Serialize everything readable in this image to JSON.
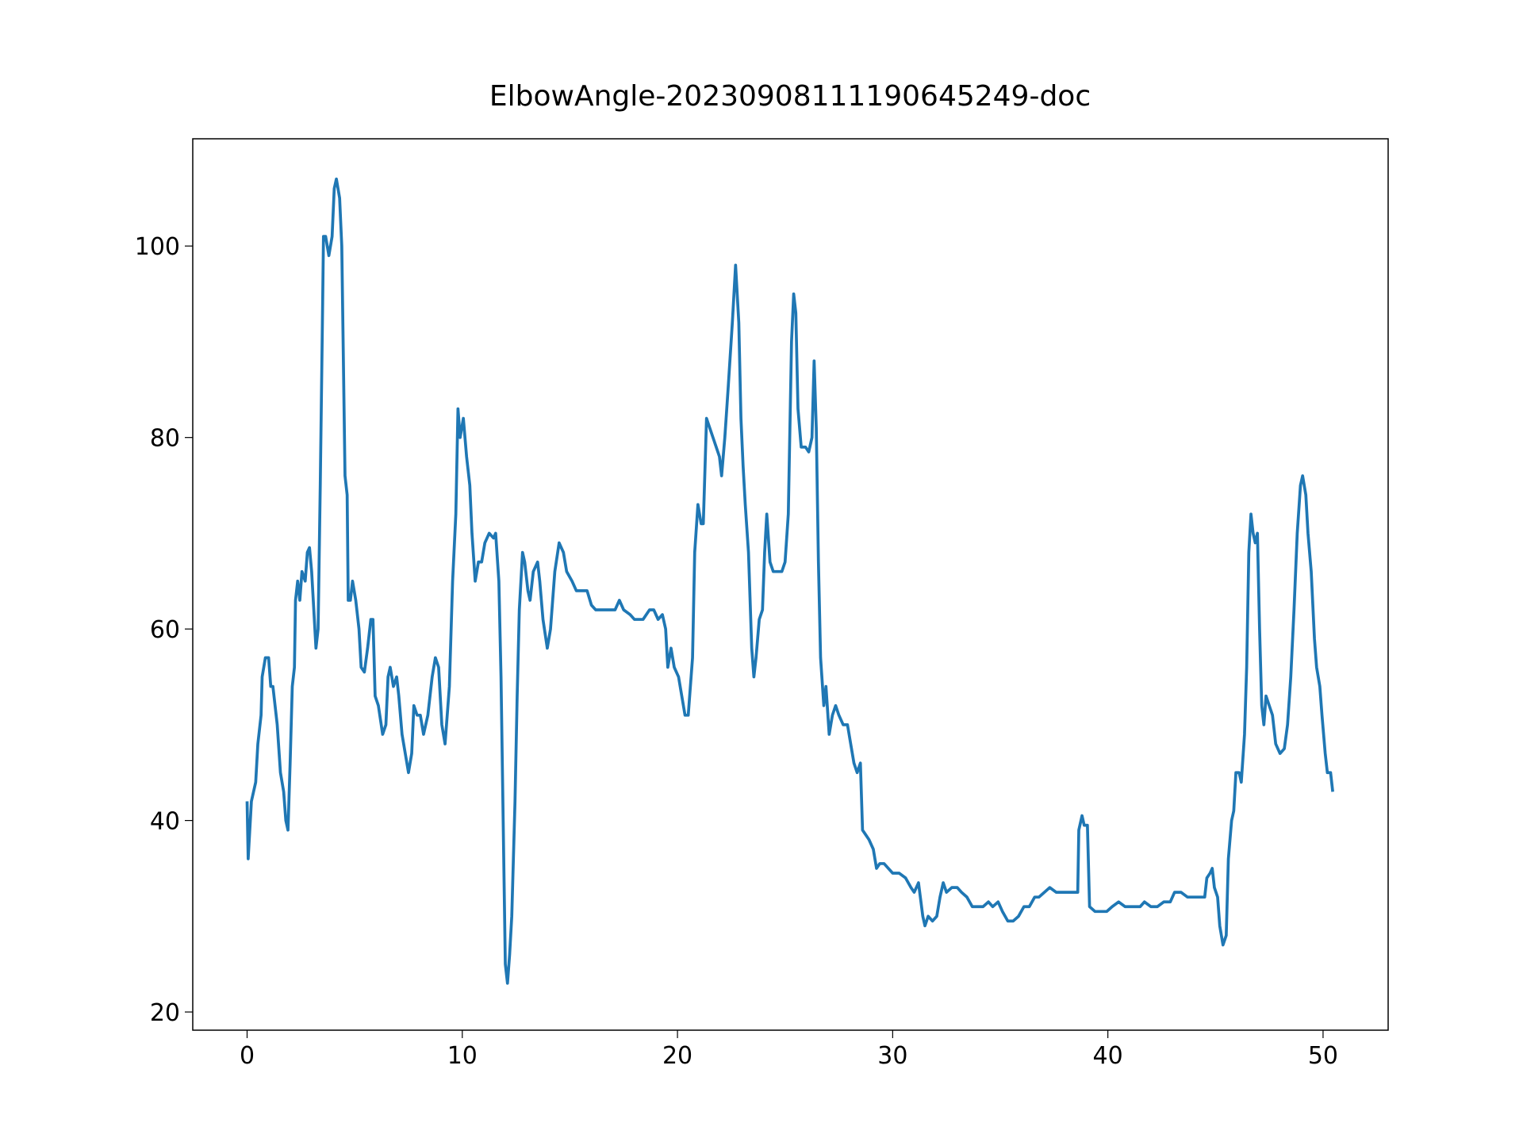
{
  "chart_data": {
    "type": "line",
    "title": "ElbowAngle-20230908111190645249-doc",
    "color": "#1f77b4",
    "xlim": [
      -2.525,
      53.025
    ],
    "ylim": [
      18.1,
      111.2
    ],
    "xticks": [
      0,
      10,
      20,
      30,
      40,
      50
    ],
    "yticks": [
      20,
      40,
      60,
      80,
      100
    ],
    "x": [
      0,
      0.05,
      0.2,
      0.4,
      0.5,
      0.65,
      0.7,
      0.85,
      1.0,
      1.1,
      1.2,
      1.4,
      1.55,
      1.7,
      1.8,
      1.9,
      2.0,
      2.1,
      2.2,
      2.25,
      2.35,
      2.45,
      2.55,
      2.7,
      2.8,
      2.9,
      3.0,
      3.1,
      3.2,
      3.3,
      3.4,
      3.5,
      3.55,
      3.65,
      3.8,
      3.95,
      4.05,
      4.15,
      4.3,
      4.4,
      4.55,
      4.65,
      4.7,
      4.8,
      4.9,
      5.05,
      5.2,
      5.3,
      5.45,
      5.6,
      5.75,
      5.85,
      5.95,
      6.1,
      6.3,
      6.45,
      6.55,
      6.65,
      6.8,
      6.95,
      7.05,
      7.2,
      7.35,
      7.5,
      7.65,
      7.75,
      7.9,
      8.05,
      8.2,
      8.4,
      8.6,
      8.75,
      8.9,
      9.05,
      9.2,
      9.4,
      9.55,
      9.7,
      9.8,
      9.9,
      10.05,
      10.2,
      10.35,
      10.45,
      10.6,
      10.75,
      10.9,
      11.05,
      11.25,
      11.45,
      11.55,
      11.7,
      11.8,
      11.9,
      12.0,
      12.1,
      12.2,
      12.3,
      12.45,
      12.55,
      12.65,
      12.8,
      12.9,
      13.05,
      13.15,
      13.3,
      13.5,
      13.6,
      13.75,
      13.95,
      14.1,
      14.3,
      14.5,
      14.7,
      14.85,
      15.1,
      15.3,
      15.6,
      15.8,
      16.0,
      16.2,
      16.5,
      16.8,
      17.1,
      17.3,
      17.5,
      17.8,
      18.0,
      18.4,
      18.7,
      18.9,
      19.1,
      19.3,
      19.45,
      19.55,
      19.7,
      19.85,
      20.05,
      20.2,
      20.35,
      20.5,
      20.7,
      20.8,
      20.95,
      21.1,
      21.2,
      21.35,
      21.5,
      21.65,
      21.8,
      21.95,
      22.05,
      22.2,
      22.35,
      22.55,
      22.7,
      22.85,
      22.95,
      23.05,
      23.15,
      23.3,
      23.45,
      23.55,
      23.65,
      23.8,
      23.95,
      24.05,
      24.15,
      24.3,
      24.45,
      24.65,
      24.85,
      25.0,
      25.15,
      25.3,
      25.4,
      25.5,
      25.6,
      25.75,
      25.95,
      26.1,
      26.25,
      26.35,
      26.45,
      26.55,
      26.65,
      26.8,
      26.9,
      27.05,
      27.2,
      27.35,
      27.5,
      27.7,
      27.9,
      28.05,
      28.2,
      28.35,
      28.5,
      28.6,
      28.75,
      28.9,
      29.1,
      29.25,
      29.4,
      29.6,
      29.8,
      30.0,
      30.3,
      30.6,
      30.85,
      31.0,
      31.2,
      31.4,
      31.5,
      31.65,
      31.85,
      32.05,
      32.2,
      32.35,
      32.5,
      32.75,
      33.0,
      33.2,
      33.45,
      33.7,
      33.95,
      34.2,
      34.45,
      34.65,
      34.9,
      35.1,
      35.35,
      35.6,
      35.85,
      36.1,
      36.35,
      36.6,
      36.8,
      37.05,
      37.3,
      37.6,
      38.0,
      38.4,
      38.6,
      38.65,
      38.8,
      38.9,
      39.05,
      39.15,
      39.4,
      39.7,
      39.95,
      40.2,
      40.5,
      40.8,
      41.2,
      41.5,
      41.7,
      42.0,
      42.3,
      42.6,
      42.9,
      43.1,
      43.4,
      43.7,
      44.0,
      44.3,
      44.5,
      44.6,
      44.75,
      44.85,
      44.95,
      45.1,
      45.2,
      45.35,
      45.5,
      45.6,
      45.75,
      45.85,
      45.95,
      46.1,
      46.2,
      46.35,
      46.45,
      46.55,
      46.65,
      46.75,
      46.85,
      46.95,
      47.05,
      47.15,
      47.25,
      47.35,
      47.5,
      47.65,
      47.8,
      48.0,
      48.2,
      48.35,
      48.5,
      48.65,
      48.8,
      48.95,
      49.05,
      49.2,
      49.3,
      49.45,
      49.6,
      49.7,
      49.85,
      49.95,
      50.1,
      50.2,
      50.35,
      50.45
    ],
    "values": [
      42,
      36,
      42,
      44,
      48,
      51,
      55,
      57,
      57,
      54,
      54,
      50,
      45,
      43,
      40,
      39,
      46,
      54,
      56,
      63,
      65,
      63,
      66,
      65,
      68,
      68.5,
      66,
      62,
      58,
      60,
      75,
      92,
      101,
      101,
      99,
      101,
      106,
      107,
      105,
      100,
      76,
      74,
      63,
      63,
      65,
      63,
      60,
      56,
      55.5,
      58,
      61,
      61,
      53,
      52,
      49,
      50,
      55,
      56,
      54,
      55,
      53,
      49,
      47,
      45,
      47,
      52,
      51,
      51,
      49,
      51,
      55,
      57,
      56,
      50,
      48,
      54,
      65,
      72,
      83,
      80,
      82,
      78,
      75,
      70,
      65,
      67,
      67,
      69,
      70,
      69.5,
      70,
      65,
      55,
      40,
      25,
      23,
      26,
      30,
      42,
      53,
      62,
      68,
      67,
      64,
      63,
      66,
      67,
      65,
      61,
      58,
      60,
      66,
      69,
      68,
      66,
      65,
      64,
      64,
      64,
      62.5,
      62,
      62,
      62,
      62,
      63,
      62,
      61.5,
      61,
      61,
      62,
      62,
      61,
      61.5,
      60,
      56,
      58,
      56,
      55,
      53,
      51,
      51,
      57,
      68,
      73,
      71,
      71,
      82,
      81,
      80,
      79,
      78,
      76,
      80,
      85,
      92,
      98,
      92,
      82,
      77,
      73,
      68,
      58,
      55,
      57,
      61,
      62,
      68,
      72,
      67,
      66,
      66,
      66,
      67,
      72,
      90,
      95,
      93,
      83,
      79,
      79,
      78.5,
      80,
      88,
      81,
      67,
      57,
      52,
      54,
      49,
      51,
      52,
      51,
      50,
      50,
      48,
      46,
      45,
      46,
      39,
      38.5,
      38,
      37,
      35,
      35.5,
      35.5,
      35,
      34.5,
      34.5,
      34,
      33,
      32.5,
      33.5,
      30,
      29,
      30,
      29.5,
      30,
      32,
      33.5,
      32.5,
      33,
      33,
      32.5,
      32,
      31,
      31,
      31,
      31.5,
      31,
      31.5,
      30.5,
      29.5,
      29.5,
      30,
      31,
      31,
      32,
      32,
      32.5,
      33,
      32.5,
      32.5,
      32.5,
      32.5,
      39,
      40.5,
      39.5,
      39.5,
      31,
      30.5,
      30.5,
      30.5,
      31,
      31.5,
      31,
      31,
      31,
      31.5,
      31,
      31,
      31.5,
      31.5,
      32.5,
      32.5,
      32,
      32,
      32,
      32,
      34,
      34.5,
      35,
      33,
      32,
      29,
      27,
      28,
      36,
      40,
      41,
      45,
      45,
      44,
      49,
      56,
      68,
      72,
      70,
      69,
      70,
      60,
      52,
      50,
      53,
      52,
      51,
      48,
      47,
      47.5,
      50,
      55,
      62,
      70,
      75,
      76,
      74,
      70,
      66,
      59,
      56,
      54,
      51,
      47,
      45,
      45,
      43
    ]
  }
}
